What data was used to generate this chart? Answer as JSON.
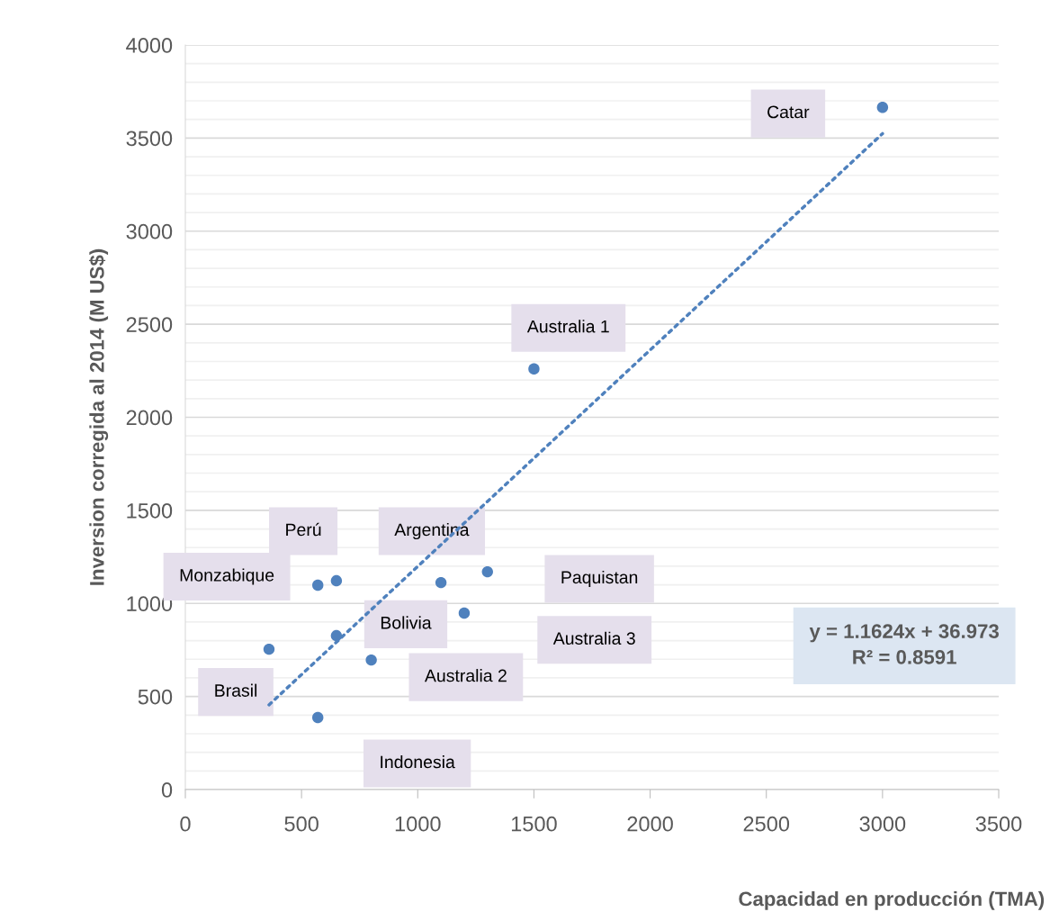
{
  "chart_data": {
    "type": "scatter",
    "xlabel": "Capacidad en producción (TMA)",
    "ylabel": "Inversion corregida al 2014 (M US$)",
    "xlim": [
      0,
      3500
    ],
    "xticks": [
      0,
      500,
      1000,
      1500,
      2000,
      2500,
      3000,
      3500
    ],
    "ylim": [
      0,
      4000
    ],
    "yticks": [
      0,
      500,
      1000,
      1500,
      2000,
      2500,
      3000,
      3500,
      4000
    ],
    "grid": "y",
    "series": [
      {
        "marker": "circle",
        "color": "#4f81bd",
        "x": [
          3000,
          1500,
          1300,
          1100,
          650,
          570,
          1200,
          650,
          800,
          360,
          570
        ],
        "values": [
          3665,
          2260,
          1170,
          1112,
          1122,
          1098,
          948,
          827,
          696,
          754,
          387
        ]
      },
      {
        "type": "line",
        "marker": "none",
        "line_style": "dotted",
        "color": "#4f81bd",
        "x": [
          360,
          3000
        ],
        "values": [
          455,
          3524
        ]
      }
    ],
    "annotations": [
      "Catar",
      "Australia 1",
      "Paquistan",
      "Argentina",
      "Perú",
      "Monzabique",
      "Australia 3",
      "Bolivia",
      "Australia 2",
      "Brasil",
      "Indonesia",
      "y = 1.1624x + 36.973\nR² = 0.8591"
    ]
  }
}
